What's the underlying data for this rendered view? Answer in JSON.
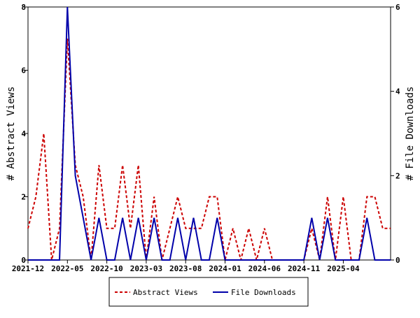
{
  "chart_data": {
    "type": "line",
    "xlabel": "",
    "ylabel_left": "# Abstract Views",
    "ylabel_right": "# File Downloads",
    "x_tick_labels": [
      "2021-12",
      "2022-05",
      "2022-10",
      "2023-03",
      "2023-08",
      "2024-01",
      "2024-06",
      "2024-11",
      "2025-04"
    ],
    "x_tick_index": [
      0,
      5,
      10,
      15,
      20,
      25,
      30,
      35,
      40
    ],
    "ylim_left": [
      0,
      8
    ],
    "ylim_right": [
      0,
      6
    ],
    "yticks_left": [
      0,
      2,
      4,
      6,
      8
    ],
    "yticks_right": [
      0,
      2,
      4,
      6
    ],
    "grid": false,
    "legend_position": "bottom-center",
    "series": [
      {
        "name": "Abstract Views",
        "axis": "left",
        "color": "#cc0000",
        "style": "dashed",
        "values": [
          1,
          2,
          4,
          0,
          1,
          7,
          3,
          2,
          0,
          3,
          1,
          1,
          3,
          1,
          3,
          0,
          2,
          0,
          1,
          2,
          1,
          1,
          1,
          2,
          2,
          0,
          1,
          0,
          1,
          0,
          1,
          0,
          0,
          0,
          0,
          0,
          1,
          0,
          2,
          0,
          2,
          0,
          0,
          2,
          2,
          1,
          1
        ]
      },
      {
        "name": "File Downloads",
        "axis": "right",
        "color": "#0000aa",
        "style": "solid",
        "values": [
          0,
          0,
          0,
          0,
          0,
          6,
          2,
          1,
          0,
          1,
          0,
          0,
          1,
          0,
          1,
          0,
          1,
          0,
          0,
          1,
          0,
          1,
          0,
          0,
          1,
          0,
          0,
          0,
          0,
          0,
          0,
          0,
          0,
          0,
          0,
          0,
          1,
          0,
          1,
          0,
          0,
          0,
          0,
          1,
          0,
          0,
          0
        ]
      }
    ]
  }
}
